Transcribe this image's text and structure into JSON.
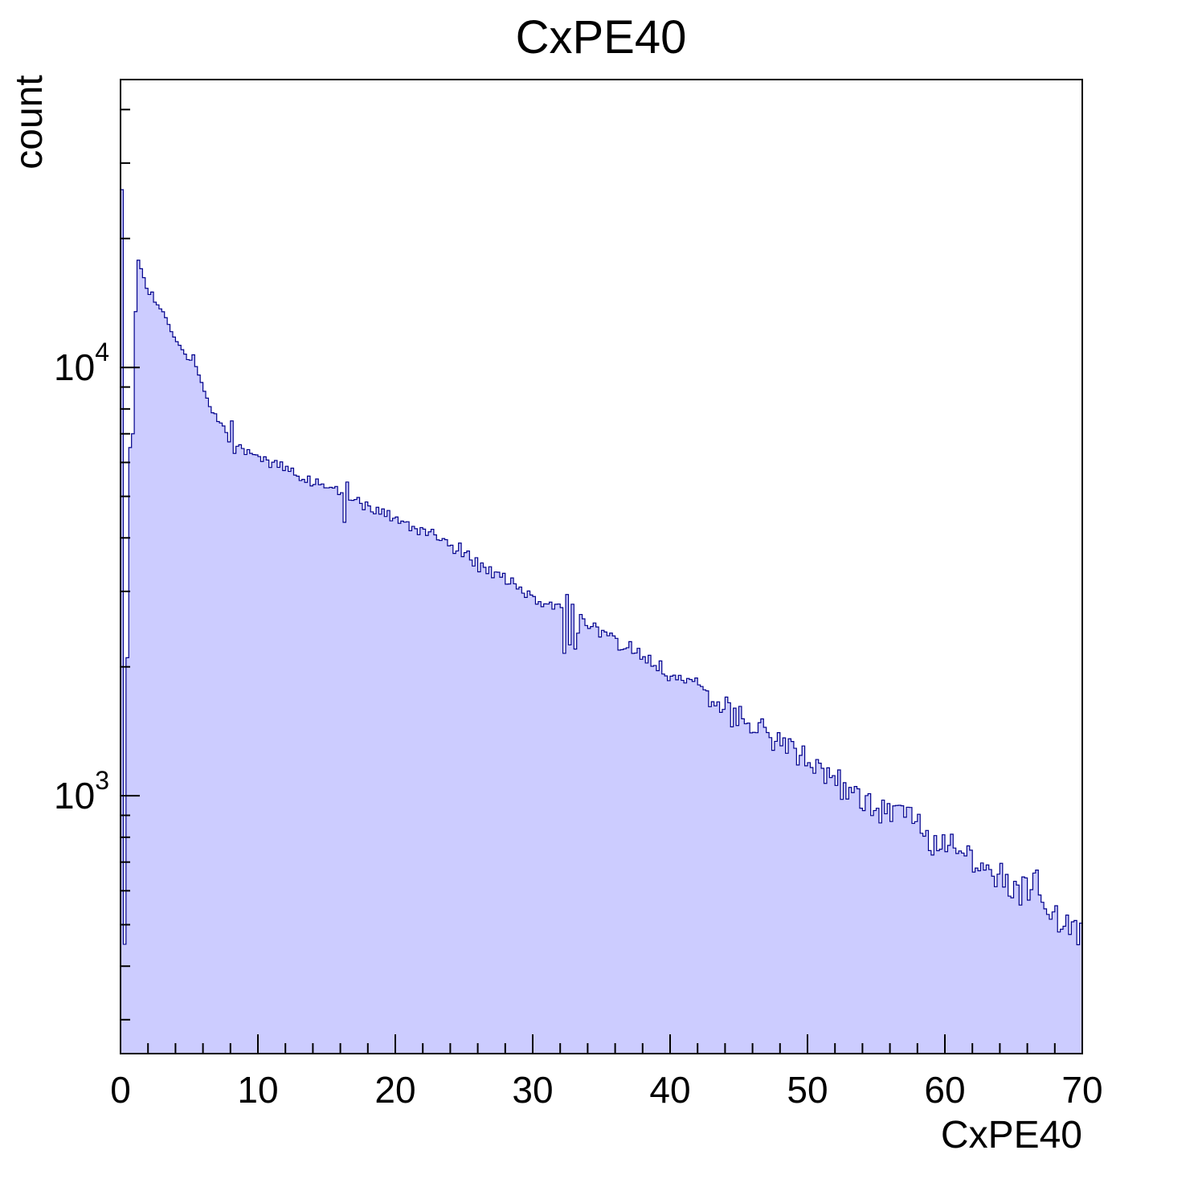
{
  "chart_data": {
    "type": "histogram",
    "title": "CxPE40",
    "xlabel": "CxPE40",
    "ylabel": "count",
    "xlim": [
      0,
      70
    ],
    "ylim": [
      250,
      47000
    ],
    "yscale": "log",
    "x_major_ticks": [
      0,
      10,
      20,
      30,
      40,
      50,
      60,
      70
    ],
    "x_minor_step": 2,
    "y_major_ticks": [
      {
        "label_base": "10",
        "label_exp": "3",
        "value": 1000
      },
      {
        "label_base": "10",
        "label_exp": "4",
        "value": 10000
      }
    ],
    "bin_width": 0.2,
    "bins": 350,
    "samples": [
      [
        0.1,
        26000
      ],
      [
        0.3,
        450
      ],
      [
        0.5,
        2100
      ],
      [
        0.7,
        6500
      ],
      [
        0.9,
        7000
      ],
      [
        1.1,
        13500
      ],
      [
        1.3,
        17800
      ],
      [
        1.5,
        17000
      ],
      [
        1.7,
        16200
      ],
      [
        1.9,
        15300
      ],
      [
        2.1,
        14800
      ],
      [
        2.3,
        15000
      ],
      [
        2.5,
        14200
      ],
      [
        2.7,
        14000
      ],
      [
        2.9,
        13700
      ],
      [
        3.5,
        12600
      ],
      [
        4.0,
        11500
      ],
      [
        4.5,
        11000
      ],
      [
        5.0,
        10500
      ],
      [
        5.3,
        10700
      ],
      [
        5.7,
        9600
      ],
      [
        6.0,
        8900
      ],
      [
        6.5,
        8100
      ],
      [
        7.0,
        7600
      ],
      [
        7.5,
        7300
      ],
      [
        7.9,
        6700
      ],
      [
        8.1,
        7500
      ],
      [
        8.3,
        6300
      ],
      [
        8.7,
        6600
      ],
      [
        9.0,
        6400
      ],
      [
        9.5,
        6300
      ],
      [
        10.0,
        6200
      ],
      [
        11,
        5950
      ],
      [
        12,
        5750
      ],
      [
        13,
        5550
      ],
      [
        14,
        5400
      ],
      [
        15,
        5250
      ],
      [
        16.1,
        5100
      ],
      [
        16.3,
        4350
      ],
      [
        16.5,
        5400
      ],
      [
        16.7,
        4900
      ],
      [
        17,
        4950
      ],
      [
        18,
        4750
      ],
      [
        19,
        4600
      ],
      [
        20,
        4450
      ],
      [
        21,
        4300
      ],
      [
        22,
        4150
      ],
      [
        23,
        4000
      ],
      [
        24,
        3850
      ],
      [
        25,
        3700
      ],
      [
        26,
        3500
      ],
      [
        27,
        3350
      ],
      [
        28,
        3200
      ],
      [
        29,
        3050
      ],
      [
        30,
        2900
      ],
      [
        31,
        2800
      ],
      [
        32.1,
        2750
      ],
      [
        32.3,
        2150
      ],
      [
        32.5,
        2950
      ],
      [
        32.7,
        2250
      ],
      [
        32.9,
        2800
      ],
      [
        33.1,
        2200
      ],
      [
        33.5,
        2650
      ],
      [
        34,
        2500
      ],
      [
        35,
        2400
      ],
      [
        36,
        2300
      ],
      [
        37,
        2200
      ],
      [
        38,
        2100
      ],
      [
        39,
        2000
      ],
      [
        40,
        1920
      ],
      [
        41,
        1840
      ],
      [
        42,
        1760
      ],
      [
        43,
        1680
      ],
      [
        44,
        1600
      ],
      [
        45,
        1530
      ],
      [
        46,
        1460
      ],
      [
        47,
        1390
      ],
      [
        48,
        1330
      ],
      [
        49,
        1270
      ],
      [
        50,
        1210
      ],
      [
        51,
        1150
      ],
      [
        52,
        1100
      ],
      [
        53,
        1050
      ],
      [
        54,
        1000
      ],
      [
        55,
        950
      ],
      [
        56,
        910
      ],
      [
        56.7,
        950
      ],
      [
        57.3,
        940
      ],
      [
        58,
        830
      ],
      [
        59,
        790
      ],
      [
        60,
        760
      ],
      [
        61,
        720
      ],
      [
        62,
        700
      ],
      [
        63,
        670
      ],
      [
        64,
        640
      ],
      [
        65,
        610
      ],
      [
        66,
        580
      ],
      [
        66.5,
        660
      ],
      [
        67,
        560
      ],
      [
        68,
        530
      ],
      [
        69,
        510
      ],
      [
        70,
        490
      ]
    ],
    "noise": {
      "coefficient": 1.2,
      "seed": 424242
    },
    "colors": {
      "fill": "#ccccff",
      "line": "#00008b",
      "frame": "#000000",
      "text": "#000000"
    }
  }
}
